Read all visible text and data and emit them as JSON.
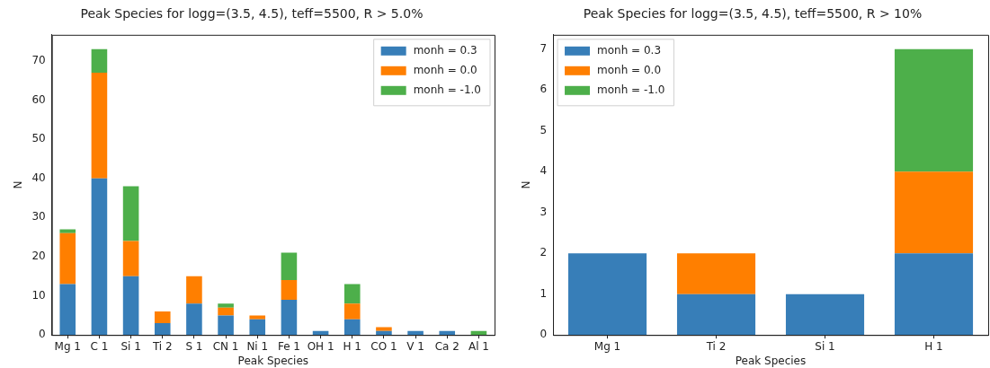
{
  "chart_data": [
    {
      "type": "bar",
      "title": "Peak Species for logg=(3.5, 4.5), teff=5500, R > 5.0%",
      "xlabel": "Peak Species",
      "ylabel": "N",
      "stacked": true,
      "legend": "top right",
      "categories": [
        "Mg 1",
        "C 1",
        "Si 1",
        "Ti 2",
        "S 1",
        "CN 1",
        "Ni 1",
        "Fe 1",
        "OH 1",
        "H 1",
        "CO 1",
        "V 1",
        "Ca 2",
        "Al 1"
      ],
      "series": [
        {
          "name": "monh = 0.3",
          "color": "#377eb8",
          "values": [
            13,
            40,
            15,
            3,
            8,
            5,
            4,
            9,
            1,
            4,
            1,
            1,
            1,
            0
          ]
        },
        {
          "name": "monh = 0.0",
          "color": "#ff7f00",
          "values": [
            13,
            27,
            9,
            3,
            7,
            2,
            1,
            5,
            0,
            4,
            1,
            0,
            0,
            0
          ]
        },
        {
          "name": "monh = -1.0",
          "color": "#4daf4a",
          "values": [
            1,
            6,
            14,
            0,
            0,
            1,
            0,
            7,
            0,
            5,
            0,
            0,
            0,
            1
          ]
        }
      ],
      "ylim": [
        0,
        76.65
      ],
      "yticks": [
        0,
        10,
        20,
        30,
        40,
        50,
        60,
        70
      ]
    },
    {
      "type": "bar",
      "title": "Peak Species for logg=(3.5, 4.5), teff=5500, R > 10%",
      "xlabel": "Peak Species",
      "ylabel": "N",
      "stacked": true,
      "legend": "top left",
      "categories": [
        "Mg 1",
        "Ti 2",
        "Si 1",
        "H 1"
      ],
      "series": [
        {
          "name": "monh = 0.3",
          "color": "#377eb8",
          "values": [
            2,
            1,
            1,
            2
          ]
        },
        {
          "name": "monh = 0.0",
          "color": "#ff7f00",
          "values": [
            0,
            1,
            0,
            2
          ]
        },
        {
          "name": "monh = -1.0",
          "color": "#4daf4a",
          "values": [
            0,
            0,
            0,
            3
          ]
        }
      ],
      "ylim": [
        0,
        7.35
      ],
      "yticks": [
        0,
        1,
        2,
        3,
        4,
        5,
        6,
        7
      ]
    }
  ]
}
